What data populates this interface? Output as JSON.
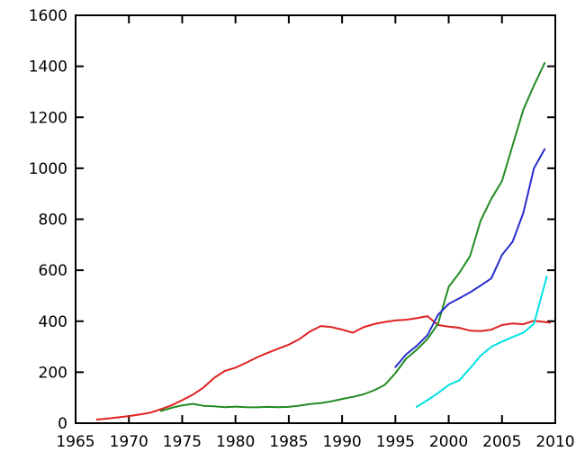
{
  "chart_data": {
    "type": "line",
    "title": "",
    "xlabel": "",
    "ylabel": "",
    "xlim": [
      1965,
      2010
    ],
    "ylim": [
      0,
      1600
    ],
    "x_ticks": [
      1965,
      1970,
      1975,
      1980,
      1985,
      1990,
      1995,
      2000,
      2005,
      2010
    ],
    "y_ticks": [
      0,
      200,
      400,
      600,
      800,
      1000,
      1200,
      1400,
      1600
    ],
    "grid": false,
    "legend": "none",
    "background_color": "#ffffff",
    "axis_color": "#000000",
    "tick_style": "inward-mirrored",
    "series": [
      {
        "name": "red-series",
        "color": "#dd2222",
        "points": [
          [
            1967,
            14
          ],
          [
            1968,
            18
          ],
          [
            1969,
            23
          ],
          [
            1970,
            28
          ],
          [
            1971,
            34
          ],
          [
            1972,
            41
          ],
          [
            1973,
            55
          ],
          [
            1974,
            70
          ],
          [
            1975,
            90
          ],
          [
            1976,
            112
          ],
          [
            1977,
            140
          ],
          [
            1978,
            178
          ],
          [
            1979,
            205
          ],
          [
            1980,
            218
          ],
          [
            1981,
            237
          ],
          [
            1982,
            258
          ],
          [
            1983,
            276
          ],
          [
            1984,
            292
          ],
          [
            1985,
            308
          ],
          [
            1986,
            330
          ],
          [
            1987,
            360
          ],
          [
            1988,
            381
          ],
          [
            1989,
            377
          ],
          [
            1990,
            367
          ],
          [
            1991,
            355
          ],
          [
            1992,
            376
          ],
          [
            1993,
            389
          ],
          [
            1994,
            397
          ],
          [
            1995,
            403
          ],
          [
            1996,
            406
          ],
          [
            1997,
            412
          ],
          [
            1998,
            420
          ],
          [
            1999,
            385
          ],
          [
            2000,
            379
          ],
          [
            2001,
            374
          ],
          [
            2002,
            363
          ],
          [
            2003,
            361
          ],
          [
            2004,
            367
          ],
          [
            2005,
            385
          ],
          [
            2006,
            391
          ],
          [
            2007,
            388
          ],
          [
            2008,
            402
          ],
          [
            2009,
            397
          ],
          [
            2009.5,
            394
          ]
        ]
      },
      {
        "name": "green-series",
        "color": "#228b22",
        "points": [
          [
            1973,
            48
          ],
          [
            1974,
            60
          ],
          [
            1975,
            70
          ],
          [
            1976,
            76
          ],
          [
            1977,
            68
          ],
          [
            1978,
            66
          ],
          [
            1979,
            63
          ],
          [
            1980,
            65
          ],
          [
            1981,
            63
          ],
          [
            1982,
            62
          ],
          [
            1983,
            64
          ],
          [
            1984,
            63
          ],
          [
            1985,
            64
          ],
          [
            1986,
            69
          ],
          [
            1987,
            75
          ],
          [
            1988,
            79
          ],
          [
            1989,
            86
          ],
          [
            1990,
            95
          ],
          [
            1991,
            103
          ],
          [
            1992,
            113
          ],
          [
            1993,
            129
          ],
          [
            1994,
            150
          ],
          [
            1995,
            196
          ],
          [
            1996,
            253
          ],
          [
            1997,
            288
          ],
          [
            1998,
            330
          ],
          [
            1999,
            390
          ],
          [
            2000,
            535
          ],
          [
            2001,
            590
          ],
          [
            2002,
            655
          ],
          [
            2003,
            795
          ],
          [
            2004,
            880
          ],
          [
            2005,
            950
          ],
          [
            2006,
            1090
          ],
          [
            2007,
            1230
          ],
          [
            2008,
            1325
          ],
          [
            2009,
            1413
          ]
        ]
      },
      {
        "name": "blue-series",
        "color": "#2a2ecc",
        "points": [
          [
            1995,
            220
          ],
          [
            1996,
            270
          ],
          [
            1997,
            303
          ],
          [
            1998,
            345
          ],
          [
            1999,
            425
          ],
          [
            2000,
            468
          ],
          [
            2001,
            490
          ],
          [
            2002,
            513
          ],
          [
            2003,
            540
          ],
          [
            2004,
            568
          ],
          [
            2005,
            660
          ],
          [
            2006,
            712
          ],
          [
            2007,
            825
          ],
          [
            2008,
            1000
          ],
          [
            2009,
            1075
          ]
        ]
      },
      {
        "name": "cyan-series",
        "color": "#00e0e6",
        "points": [
          [
            1997,
            64
          ],
          [
            1998,
            90
          ],
          [
            1999,
            118
          ],
          [
            2000,
            150
          ],
          [
            2001,
            168
          ],
          [
            2002,
            215
          ],
          [
            2003,
            265
          ],
          [
            2004,
            300
          ],
          [
            2005,
            320
          ],
          [
            2006,
            338
          ],
          [
            2007,
            355
          ],
          [
            2008,
            390
          ],
          [
            2009.2,
            575
          ]
        ]
      }
    ]
  }
}
